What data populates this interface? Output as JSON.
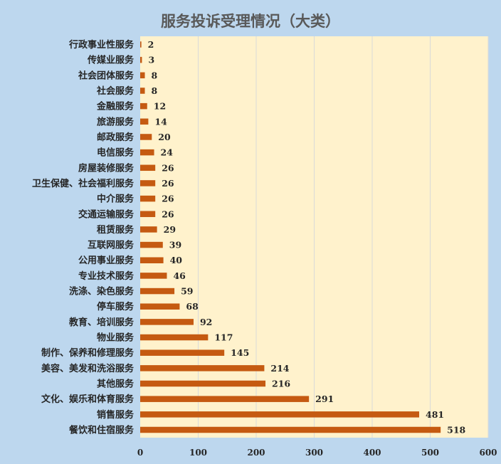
{
  "chart_data": {
    "type": "bar",
    "orientation": "horizontal",
    "title": "服务投诉受理情况（大类）",
    "xlabel": "",
    "ylabel": "",
    "xlim": [
      0,
      600
    ],
    "xticks": [
      0,
      100,
      200,
      300,
      400,
      500,
      600
    ],
    "grid": true,
    "legend": "none",
    "colors": {
      "bar": "#c55a11",
      "plot_background": "#fff2cc",
      "page_background": "#bdd7ee",
      "gridline": "#d9d9d9",
      "title": "#595959",
      "text": "#262626"
    },
    "categories": [
      "行政事业性服务",
      "传媒业服务",
      "社会团体服务",
      "社会服务",
      "金融服务",
      "旅游服务",
      "邮政服务",
      "电信服务",
      "房屋装修服务",
      "卫生保健、社会福利服务",
      "中介服务",
      "交通运输服务",
      "租赁服务",
      "互联网服务",
      "公用事业服务",
      "专业技术服务",
      "洗涤、染色服务",
      "停车服务",
      "教育、培训服务",
      "物业服务",
      "制作、保养和修理服务",
      "美容、美发和洗浴服务",
      "其他服务",
      "文化、娱乐和体育服务",
      "销售服务",
      "餐饮和住宿服务"
    ],
    "values": [
      2,
      3,
      8,
      8,
      12,
      14,
      20,
      24,
      26,
      26,
      26,
      26,
      29,
      39,
      40,
      46,
      59,
      68,
      92,
      117,
      145,
      214,
      216,
      291,
      481,
      518
    ]
  }
}
